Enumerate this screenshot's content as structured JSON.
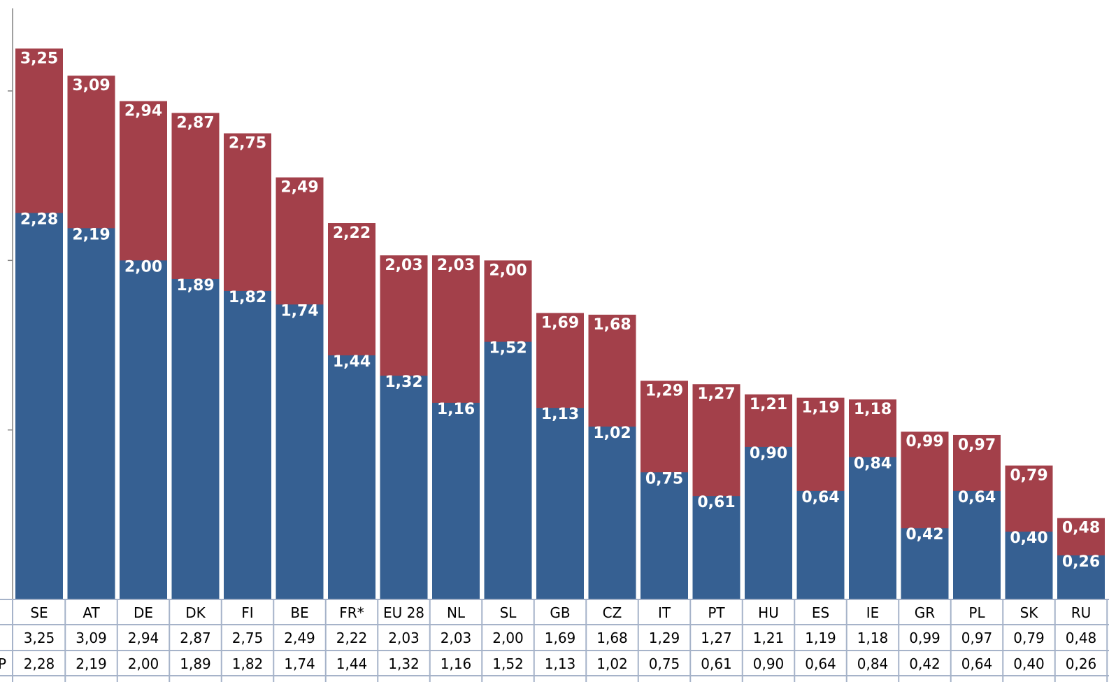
{
  "chart_data": {
    "type": "bar",
    "stacked": false,
    "overlapping": true,
    "categories": [
      "SE",
      "AT",
      "DE",
      "DK",
      "FI",
      "BE",
      "FR*",
      "EU 28",
      "NL",
      "SL",
      "GB",
      "CZ",
      "IT",
      "PT",
      "HU",
      "ES",
      "IE",
      "GR",
      "PL",
      "SK",
      "RU"
    ],
    "series": [
      {
        "color": "#A3404A",
        "values": [
          3.25,
          3.09,
          2.94,
          2.87,
          2.75,
          2.49,
          2.22,
          2.03,
          2.03,
          2.0,
          1.69,
          1.68,
          1.29,
          1.27,
          1.21,
          1.19,
          1.18,
          0.99,
          0.97,
          0.79,
          0.48
        ],
        "labels": [
          "3,25",
          "3,09",
          "2,94",
          "2,87",
          "2,75",
          "2,49",
          "2,22",
          "2,03",
          "2,03",
          "2,00",
          "1,69",
          "1,68",
          "1,29",
          "1,27",
          "1,21",
          "1,19",
          "1,18",
          "0,99",
          "0,97",
          "0,79",
          "0,48"
        ]
      },
      {
        "table_row_label": "P",
        "color": "#366092",
        "values": [
          2.28,
          2.19,
          2.0,
          1.89,
          1.82,
          1.74,
          1.44,
          1.32,
          1.16,
          1.52,
          1.13,
          1.02,
          0.75,
          0.61,
          0.9,
          0.64,
          0.84,
          0.42,
          0.64,
          0.4,
          0.26
        ],
        "labels": [
          "2,28",
          "2,19",
          "2,00",
          "1,89",
          "1,82",
          "1,74",
          "1,44",
          "1,32",
          "1,16",
          "1,52",
          "1,13",
          "1,02",
          "0,75",
          "0,61",
          "0,90",
          "0,64",
          "0,84",
          "0,42",
          "0,64",
          "0,40",
          "0,26"
        ]
      }
    ],
    "ylim": [
      0,
      3.5
    ],
    "grid": false,
    "legend": "none (data table below chart)"
  },
  "colors": {
    "axis": "#808080",
    "table_border": "#A6B3C9",
    "label_text": "#ffffff"
  }
}
